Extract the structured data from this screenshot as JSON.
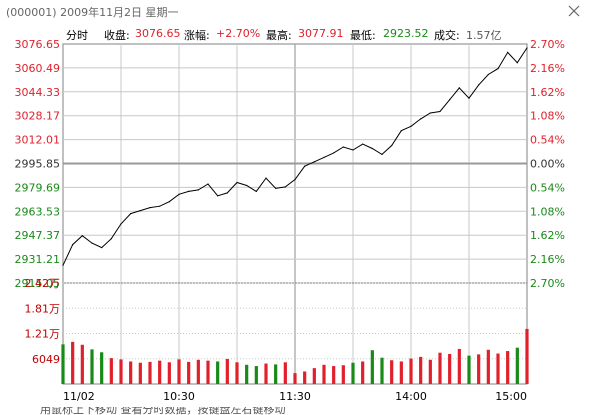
{
  "window": {
    "title": "(000001) 2009年11月2日 星期一"
  },
  "info_bar": {
    "mode_label": "分时",
    "close_label": "收盘:",
    "close_value": "3076.65",
    "change_label": "涨幅:",
    "change_value": "+2.70%",
    "high_label": "最高:",
    "high_value": "3077.91",
    "low_label": "最低:",
    "low_value": "2923.52",
    "volume_label": "成交:",
    "volume_value": "1.57亿"
  },
  "colors": {
    "up": "#e0212c",
    "down": "#188a18",
    "line": "#000000",
    "grid": "#c8c8c8",
    "base": "#999999"
  },
  "bottom_text": "用鼠标上下移动 查看分时数据，按键盘左右键移动",
  "chart_data": [
    {
      "type": "line",
      "title": "",
      "prev_close": 2995.85,
      "ylim": [
        2915.05,
        3076.65
      ],
      "y_ticks_left": [
        "3076.65",
        "3060.49",
        "3044.33",
        "3028.17",
        "3012.01",
        "2995.85",
        "2979.69",
        "2963.53",
        "2947.37",
        "2931.21",
        "2915.05"
      ],
      "y_ticks_right": [
        "2.70%",
        "2.16%",
        "1.62%",
        "1.08%",
        "0.54%",
        "0.00%",
        "0.54%",
        "1.08%",
        "1.62%",
        "2.16%",
        "2.70%"
      ],
      "x_ticks": [
        "11/02",
        "10:30",
        "11:30",
        "14:00",
        "15:00"
      ],
      "x": [
        0,
        5,
        10,
        15,
        20,
        25,
        30,
        35,
        40,
        45,
        50,
        55,
        60,
        65,
        70,
        75,
        80,
        85,
        90,
        95,
        100,
        105,
        110,
        115,
        120,
        125,
        130,
        135,
        140,
        145,
        150,
        155,
        160,
        165,
        170,
        175,
        180,
        185,
        190,
        195,
        200,
        205,
        210,
        215,
        220,
        225,
        230,
        235,
        240
      ],
      "series": [
        {
          "values": [
            2927,
            2941,
            2947,
            2942,
            2939,
            2945,
            2955,
            2962,
            2964,
            2966,
            2967,
            2970,
            2975,
            2977,
            2978,
            2982,
            2974,
            2976,
            2983,
            2981,
            2977,
            2986,
            2979,
            2980,
            2985,
            2994,
            2997,
            3000,
            3003,
            3007,
            3005,
            3009,
            3006,
            3002,
            3008,
            3018,
            3021,
            3026,
            3030,
            3031,
            3039,
            3047,
            3040,
            3049,
            3056,
            3060,
            3071,
            3064,
            3074
          ]
        }
      ]
    },
    {
      "type": "bar",
      "title": "",
      "y_ticks": [
        "2.42万",
        "1.81万",
        "1.21万",
        "6049"
      ],
      "ylim": [
        0,
        24200
      ],
      "x": [
        0,
        5,
        10,
        15,
        20,
        25,
        30,
        35,
        40,
        45,
        50,
        55,
        60,
        65,
        70,
        75,
        80,
        85,
        90,
        95,
        100,
        105,
        110,
        115,
        120,
        125,
        130,
        135,
        140,
        145,
        150,
        155,
        160,
        165,
        170,
        175,
        180,
        185,
        190,
        195,
        200,
        205,
        210,
        215,
        220,
        225,
        230,
        235,
        240
      ],
      "series": [
        {
          "values": [
            9500,
            10100,
            9400,
            8300,
            7600,
            6200,
            5900,
            5400,
            5100,
            5300,
            5600,
            5200,
            5900,
            5300,
            5800,
            5600,
            5400,
            6000,
            5200,
            4600,
            4300,
            4900,
            4700,
            5200,
            2600,
            3000,
            3800,
            4600,
            4300,
            4500,
            5100,
            5400,
            8100,
            6300,
            5700,
            5400,
            6100,
            6500,
            5800,
            7500,
            7200,
            8400,
            6800,
            7100,
            8200,
            7300,
            7900,
            8700,
            13200
          ]
        }
      ]
    }
  ]
}
